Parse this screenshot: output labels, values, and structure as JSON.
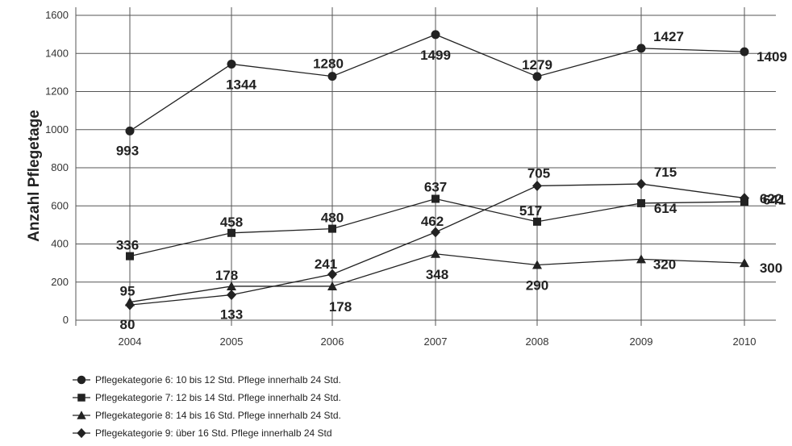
{
  "chart_data": {
    "type": "line",
    "ylabel": "Anzahl Pflegetage",
    "xlabel": "",
    "x": [
      "2004",
      "2005",
      "2006",
      "2007",
      "2008",
      "2009",
      "2010"
    ],
    "ylim": [
      0,
      1600
    ],
    "yticks": [
      0,
      200,
      400,
      600,
      800,
      1000,
      1200,
      1400,
      1600
    ],
    "grid": true,
    "legend_position": "bottom-left",
    "series": [
      {
        "name": "Pflegekategorie 6: 10 bis 12 Std. Pflege innerhalb 24 Std.",
        "marker": "circle",
        "values": [
          993,
          1344,
          1280,
          1499,
          1279,
          1427,
          1409
        ]
      },
      {
        "name": "Pflegekategorie 7: 12 bis 14 Std. Pflege innerhalb 24 Std.",
        "marker": "square",
        "values": [
          336,
          458,
          480,
          637,
          517,
          614,
          622
        ]
      },
      {
        "name": "Pflegekategorie 8: 14 bis 16 Std. Pflege innerhalb 24 Std.",
        "marker": "triangle",
        "values": [
          95,
          178,
          178,
          348,
          290,
          320,
          300
        ]
      },
      {
        "name": "Pflegekategorie 9: über 16 Std. Pflege innerhalb 24 Std",
        "marker": "diamond",
        "values": [
          80,
          133,
          241,
          462,
          705,
          715,
          641
        ]
      }
    ]
  }
}
